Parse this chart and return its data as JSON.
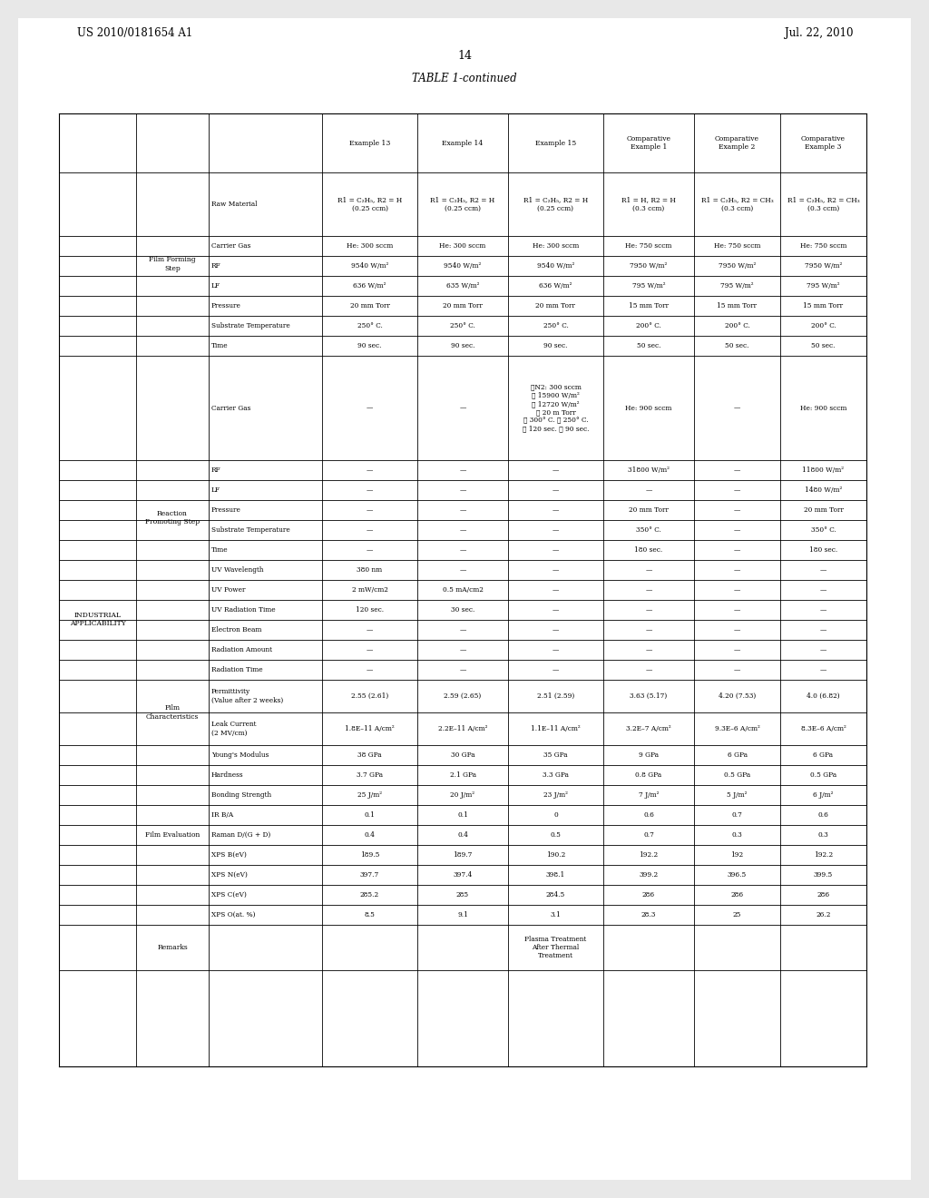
{
  "title": "TABLE 1-continued",
  "page_header_left": "US 2010/0181654 A1",
  "page_header_right": "Jul. 22, 2010",
  "page_number": "14",
  "bg_color": "#f0f0f0",
  "table_bg": "#ffffff"
}
